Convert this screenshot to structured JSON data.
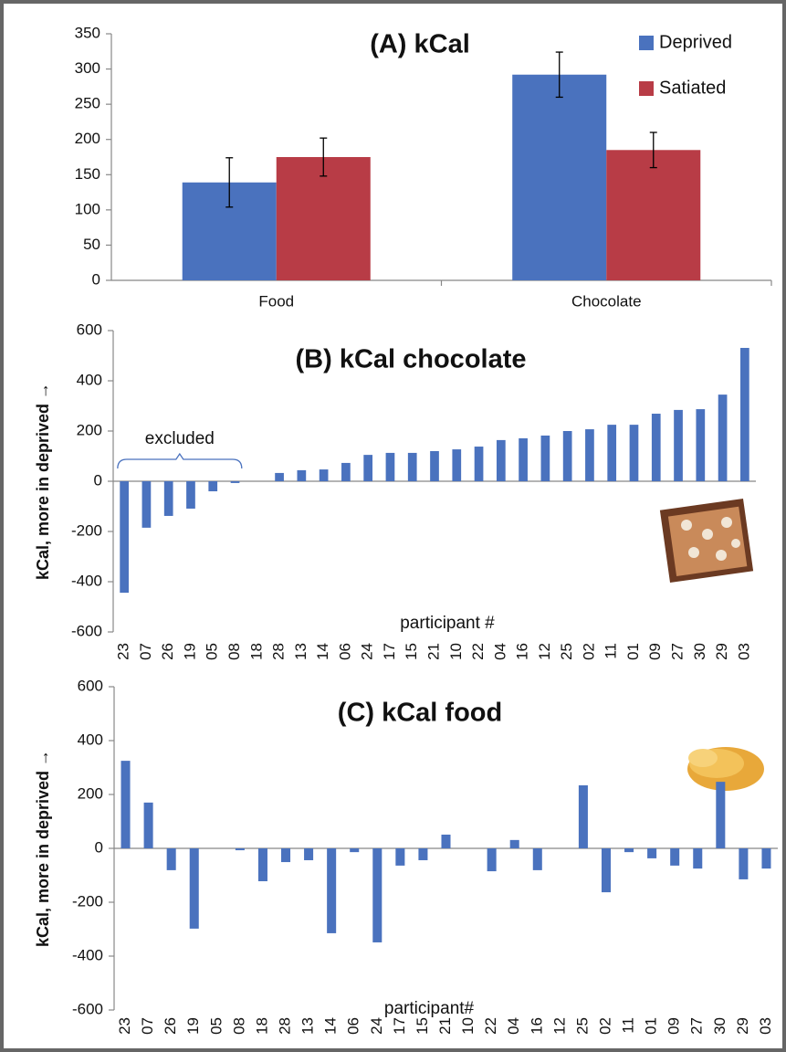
{
  "chart_data": [
    {
      "type": "bar",
      "title": "(A) kCal",
      "categories": [
        "Food",
        "Chocolate"
      ],
      "series": [
        {
          "name": "Deprived",
          "color": "#4a72be",
          "values": [
            139,
            292
          ],
          "errors": [
            35,
            32
          ]
        },
        {
          "name": "Satiated",
          "color": "#b83c46",
          "values": [
            175,
            185
          ],
          "errors": [
            27,
            25
          ]
        }
      ],
      "ylim": [
        0,
        350
      ],
      "yticks": [
        0,
        50,
        100,
        150,
        200,
        250,
        300,
        350
      ],
      "legend": "upper right",
      "grid": false
    },
    {
      "type": "bar",
      "title": "(B) kCal chocolate",
      "y_label": "kCal, more in deprived →",
      "x_label": "participant #",
      "annotation": "excluded",
      "categories": [
        "23",
        "07",
        "26",
        "19",
        "05",
        "08",
        "18",
        "28",
        "13",
        "14",
        "06",
        "24",
        "17",
        "15",
        "21",
        "10",
        "22",
        "04",
        "16",
        "12",
        "25",
        "02",
        "11",
        "01",
        "09",
        "27",
        "30",
        "29",
        "03"
      ],
      "values": [
        -444,
        -185,
        -138,
        -109,
        -40,
        -7,
        0,
        33,
        44,
        47,
        73,
        105,
        113,
        113,
        120,
        127,
        138,
        164,
        171,
        182,
        200,
        207,
        225,
        225,
        269,
        284,
        287,
        345,
        531
      ],
      "color": "#4a72be",
      "ylim": [
        -600,
        600
      ],
      "yticks": [
        -600,
        -400,
        -200,
        0,
        200,
        400,
        600
      ],
      "grid": false
    },
    {
      "type": "bar",
      "title": "(C) kCal food",
      "y_label": "kCal, more in deprived →",
      "x_label": "participant#",
      "categories": [
        "23",
        "07",
        "26",
        "19",
        "05",
        "08",
        "18",
        "28",
        "13",
        "14",
        "06",
        "24",
        "17",
        "15",
        "21",
        "10",
        "22",
        "04",
        "16",
        "12",
        "25",
        "02",
        "11",
        "01",
        "09",
        "27",
        "30",
        "29",
        "03"
      ],
      "values": [
        325,
        170,
        -81,
        -298,
        0,
        -7,
        -122,
        -51,
        -44,
        -315,
        -14,
        -349,
        -64,
        -44,
        51,
        0,
        -85,
        31,
        -81,
        0,
        234,
        -163,
        -14,
        -37,
        -64,
        -75,
        247,
        -115,
        -75
      ],
      "color": "#4a72be",
      "ylim": [
        -600,
        600
      ],
      "yticks": [
        -600,
        -400,
        -200,
        0,
        200,
        400,
        600
      ],
      "grid": false
    }
  ]
}
